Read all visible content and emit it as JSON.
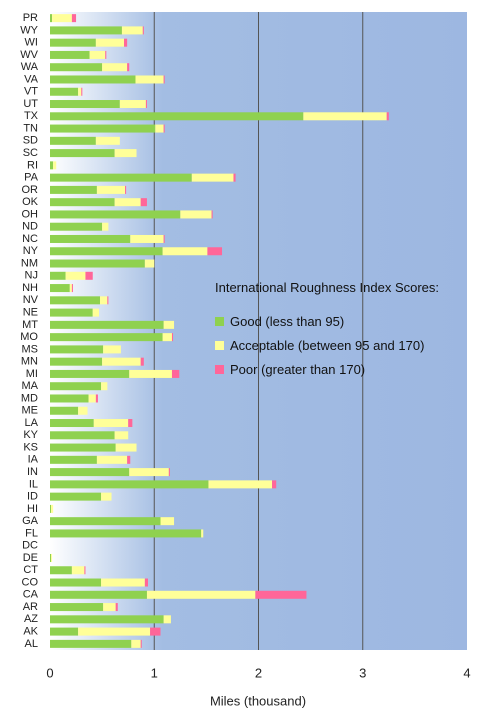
{
  "chart_data": {
    "type": "stacked_bar_horizontal",
    "legend_title": "International Roughness Index Scores:",
    "x_label": "Miles (thousand)",
    "xlim": [
      0,
      4
    ],
    "xticks": [
      0,
      1,
      2,
      3,
      4
    ],
    "grid": true,
    "legend_position": "right",
    "categories": [
      "PR",
      "WY",
      "WI",
      "WV",
      "WA",
      "VA",
      "VT",
      "UT",
      "TX",
      "TN",
      "SD",
      "SC",
      "RI",
      "PA",
      "OR",
      "OK",
      "OH",
      "ND",
      "NC",
      "NY",
      "NM",
      "NJ",
      "NH",
      "NV",
      "NE",
      "MT",
      "MO",
      "MS",
      "MN",
      "MI",
      "MA",
      "MD",
      "ME",
      "LA",
      "KY",
      "KS",
      "IA",
      "IN",
      "IL",
      "ID",
      "HI",
      "GA",
      "FL",
      "DC",
      "DE",
      "CT",
      "CO",
      "CA",
      "AR",
      "AZ",
      "AK",
      "AL"
    ],
    "series": [
      {
        "name": "Good (less than 95)",
        "color": "#8fd14f",
        "values": [
          0.02,
          0.69,
          0.44,
          0.38,
          0.5,
          0.82,
          0.27,
          0.67,
          2.43,
          1.01,
          0.44,
          0.62,
          0.03,
          1.36,
          0.45,
          0.62,
          1.25,
          0.5,
          0.77,
          1.08,
          0.91,
          0.15,
          0.19,
          0.48,
          0.41,
          1.09,
          1.08,
          0.51,
          0.5,
          0.76,
          0.49,
          0.37,
          0.27,
          0.42,
          0.62,
          0.63,
          0.45,
          0.76,
          1.52,
          0.49,
          0.01,
          1.06,
          1.45,
          0,
          0.01,
          0.21,
          0.49,
          0.93,
          0.51,
          1.09,
          0.27,
          0.78
        ]
      },
      {
        "name": "Acceptable (between 95 and 170)",
        "color": "#ffff99",
        "values": [
          0.19,
          0.2,
          0.27,
          0.15,
          0.24,
          0.27,
          0.03,
          0.25,
          0.8,
          0.08,
          0.23,
          0.21,
          0.03,
          0.4,
          0.27,
          0.25,
          0.3,
          0.06,
          0.32,
          0.43,
          0.09,
          0.19,
          0.02,
          0.07,
          0.06,
          0.1,
          0.09,
          0.17,
          0.37,
          0.41,
          0.06,
          0.07,
          0.09,
          0.33,
          0.13,
          0.2,
          0.29,
          0.38,
          0.61,
          0.1,
          0.02,
          0.13,
          0.02,
          0,
          0.01,
          0.12,
          0.42,
          1.04,
          0.12,
          0.07,
          0.69,
          0.09
        ]
      },
      {
        "name": "Poor (greater than 170)",
        "color": "#ff6699",
        "values": [
          0.04,
          0.01,
          0.03,
          0.01,
          0.02,
          0.01,
          0.01,
          0.01,
          0.02,
          0.01,
          0,
          0,
          0,
          0.02,
          0.01,
          0.06,
          0.01,
          0,
          0.01,
          0.14,
          0,
          0.07,
          0.01,
          0.01,
          0,
          0,
          0.01,
          0,
          0.03,
          0.07,
          0,
          0.02,
          0,
          0.04,
          0,
          0,
          0.03,
          0.01,
          0.04,
          0,
          0,
          0,
          0,
          0,
          0,
          0.01,
          0.03,
          0.49,
          0.02,
          0,
          0.1,
          0.01
        ]
      }
    ]
  }
}
